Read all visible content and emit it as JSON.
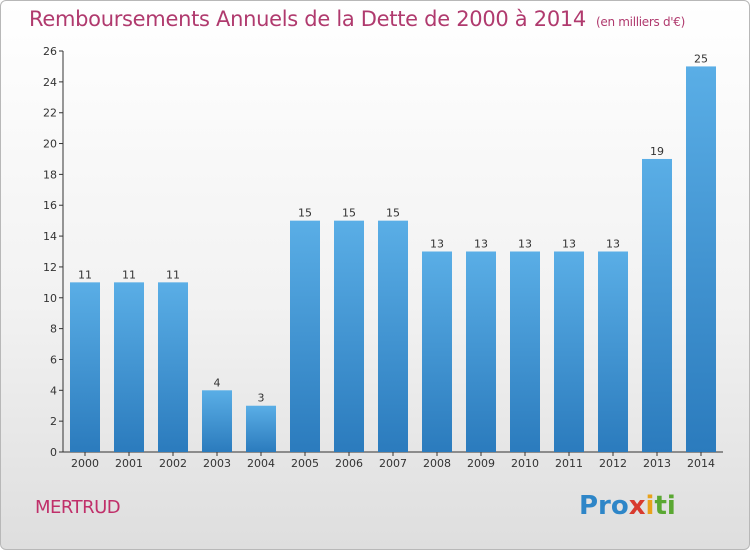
{
  "header": {
    "title": "Remboursements Annuels de la Dette de 2000 à 2014",
    "unit": "(en milliers d'€)"
  },
  "footer": {
    "commune": "MERTRUD",
    "logo": {
      "p1": "Pro",
      "p2": "x",
      "p3": "i",
      "p4": "ti"
    }
  },
  "colors": {
    "bar_top": "#5aaee6",
    "bar_bottom": "#2b7bbd",
    "title": "#b03a6e"
  },
  "chart_data": {
    "type": "bar",
    "title": "Remboursements Annuels de la Dette de 2000 à 2014",
    "subtitle": "(en milliers d'€)",
    "categories": [
      "2000",
      "2001",
      "2002",
      "2003",
      "2004",
      "2005",
      "2006",
      "2007",
      "2008",
      "2009",
      "2010",
      "2011",
      "2012",
      "2013",
      "2014"
    ],
    "values": [
      11,
      11,
      11,
      4,
      3,
      15,
      15,
      15,
      13,
      13,
      13,
      13,
      13,
      19,
      25
    ],
    "ylim": [
      0,
      26
    ],
    "yticks": [
      0,
      2,
      4,
      6,
      8,
      10,
      12,
      14,
      16,
      18,
      20,
      22,
      24,
      26
    ],
    "grid": false,
    "legend": "none"
  }
}
